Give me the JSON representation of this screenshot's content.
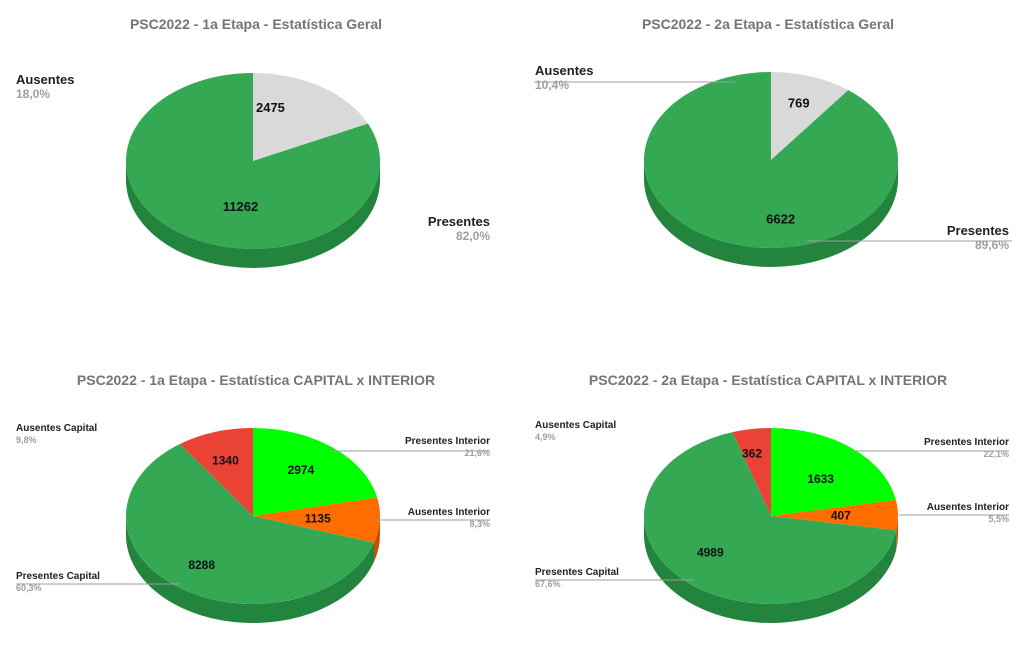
{
  "chart_data": [
    {
      "type": "pie",
      "title": "PSC2022 - 1a Etapa - Estatística Geral",
      "slices": [
        {
          "label": "Ausentes",
          "value": 2475,
          "percent_label": "18,0%",
          "color": "#d9d9d9"
        },
        {
          "label": "Presentes",
          "value": 11262,
          "percent_label": "82,0%",
          "color": "#34a853"
        }
      ]
    },
    {
      "type": "pie",
      "title": "PSC2022 - 2a Etapa - Estatística Geral",
      "slices": [
        {
          "label": "Ausentes",
          "value": 769,
          "percent_label": "10,4%",
          "color": "#d9d9d9"
        },
        {
          "label": "Presentes",
          "value": 6622,
          "percent_label": "89,6%",
          "color": "#34a853"
        }
      ]
    },
    {
      "type": "pie",
      "title": "PSC2022 - 1a Etapa - Estatística CAPITAL x INTERIOR",
      "slices": [
        {
          "label": "Presentes Interior",
          "value": 2974,
          "percent_label": "21,6%",
          "color": "#00ff00"
        },
        {
          "label": "Ausentes Interior",
          "value": 1135,
          "percent_label": "8,3%",
          "color": "#ff6d01"
        },
        {
          "label": "Presentes Capital",
          "value": 8288,
          "percent_label": "60,3%",
          "color": "#34a853"
        },
        {
          "label": "Ausentes Capital",
          "value": 1340,
          "percent_label": "9,8%",
          "color": "#ea4335"
        }
      ]
    },
    {
      "type": "pie",
      "title": "PSC2022 - 2a Etapa - Estatística CAPITAL x INTERIOR",
      "slices": [
        {
          "label": "Presentes Interior",
          "value": 1633,
          "percent_label": "22,1%",
          "color": "#00ff00"
        },
        {
          "label": "Ausentes Interior",
          "value": 407,
          "percent_label": "5,5%",
          "color": "#ff6d01"
        },
        {
          "label": "Presentes Capital",
          "value": 4989,
          "percent_label": "67,6%",
          "color": "#34a853"
        },
        {
          "label": "Ausentes Capital",
          "value": 362,
          "percent_label": "4,9%",
          "color": "#ea4335"
        }
      ]
    }
  ]
}
